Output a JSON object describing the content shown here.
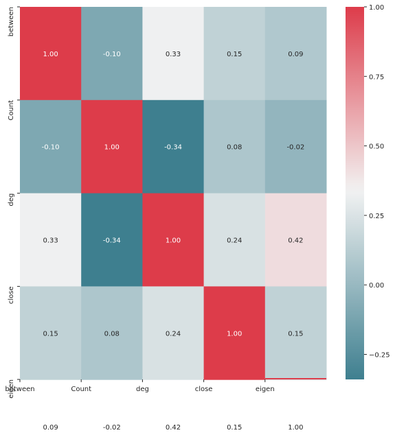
{
  "chart_data": {
    "type": "heatmap",
    "title": "",
    "row_labels": [
      "between",
      "Count",
      "deg",
      "close",
      "eigen"
    ],
    "col_labels": [
      "between",
      "Count",
      "deg",
      "close",
      "eigen"
    ],
    "values": [
      [
        1.0,
        -0.1,
        0.33,
        0.15,
        0.09
      ],
      [
        -0.1,
        1.0,
        -0.34,
        0.08,
        -0.02
      ],
      [
        0.33,
        -0.34,
        1.0,
        0.24,
        0.42
      ],
      [
        0.15,
        0.08,
        0.24,
        1.0,
        0.15
      ],
      [
        0.09,
        -0.02,
        0.42,
        0.15,
        1.0
      ]
    ],
    "value_format": "0.00",
    "colorbar": {
      "min": -0.34,
      "max": 1.0,
      "ticks": [
        -0.25,
        0.0,
        0.25,
        0.5,
        0.75,
        1.0
      ],
      "tick_labels": [
        "−0.25",
        "0.00",
        "0.25",
        "0.50",
        "0.75",
        "1.00"
      ],
      "colors": [
        "#3e7f8f",
        "#f2f2f2",
        "#dd3c4a"
      ],
      "center": 0.34
    },
    "annotations": true,
    "grid": false
  }
}
